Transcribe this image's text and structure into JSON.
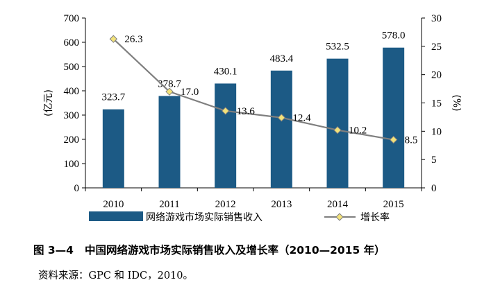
{
  "chart_data": {
    "type": "bar",
    "categories": [
      "2010",
      "2011",
      "2012",
      "2013",
      "2014",
      "2015"
    ],
    "series": [
      {
        "name": "网络游戏市场实际销售收入",
        "kind": "bar",
        "axis": "left",
        "values": [
          323.7,
          378.7,
          430.1,
          483.4,
          532.5,
          578.0
        ],
        "labels": [
          "323.7",
          "378.7",
          "430.1",
          "483.4",
          "532.5",
          "578.0"
        ]
      },
      {
        "name": "增长率",
        "kind": "line",
        "axis": "right",
        "values": [
          26.3,
          17.0,
          13.6,
          12.4,
          10.2,
          8.5
        ],
        "labels": [
          "26.3",
          "17.0",
          "13.6",
          "12.4",
          "10.2",
          "8.5"
        ]
      }
    ],
    "ylabel": "(亿元)",
    "ylim": [
      0,
      700
    ],
    "yticks": [
      "0",
      "100",
      "200",
      "300",
      "400",
      "500",
      "600",
      "700"
    ],
    "y2label": "(%)",
    "y2lim": [
      0,
      30
    ],
    "y2ticks": [
      "0",
      "5",
      "10",
      "15",
      "20",
      "25",
      "30"
    ],
    "legend_position": "bottom",
    "colors": {
      "bar": "#1c5a85",
      "line": "#7f7f7f",
      "marker": "#f2e27a",
      "marker_edge": "#7f7f7f"
    }
  },
  "caption": {
    "number": "图 3—4",
    "title": "中国网络游戏市场实际销售收入及增长率（2010—2015 年）"
  },
  "source": "资料来源：GPC 和 IDC，2010。"
}
